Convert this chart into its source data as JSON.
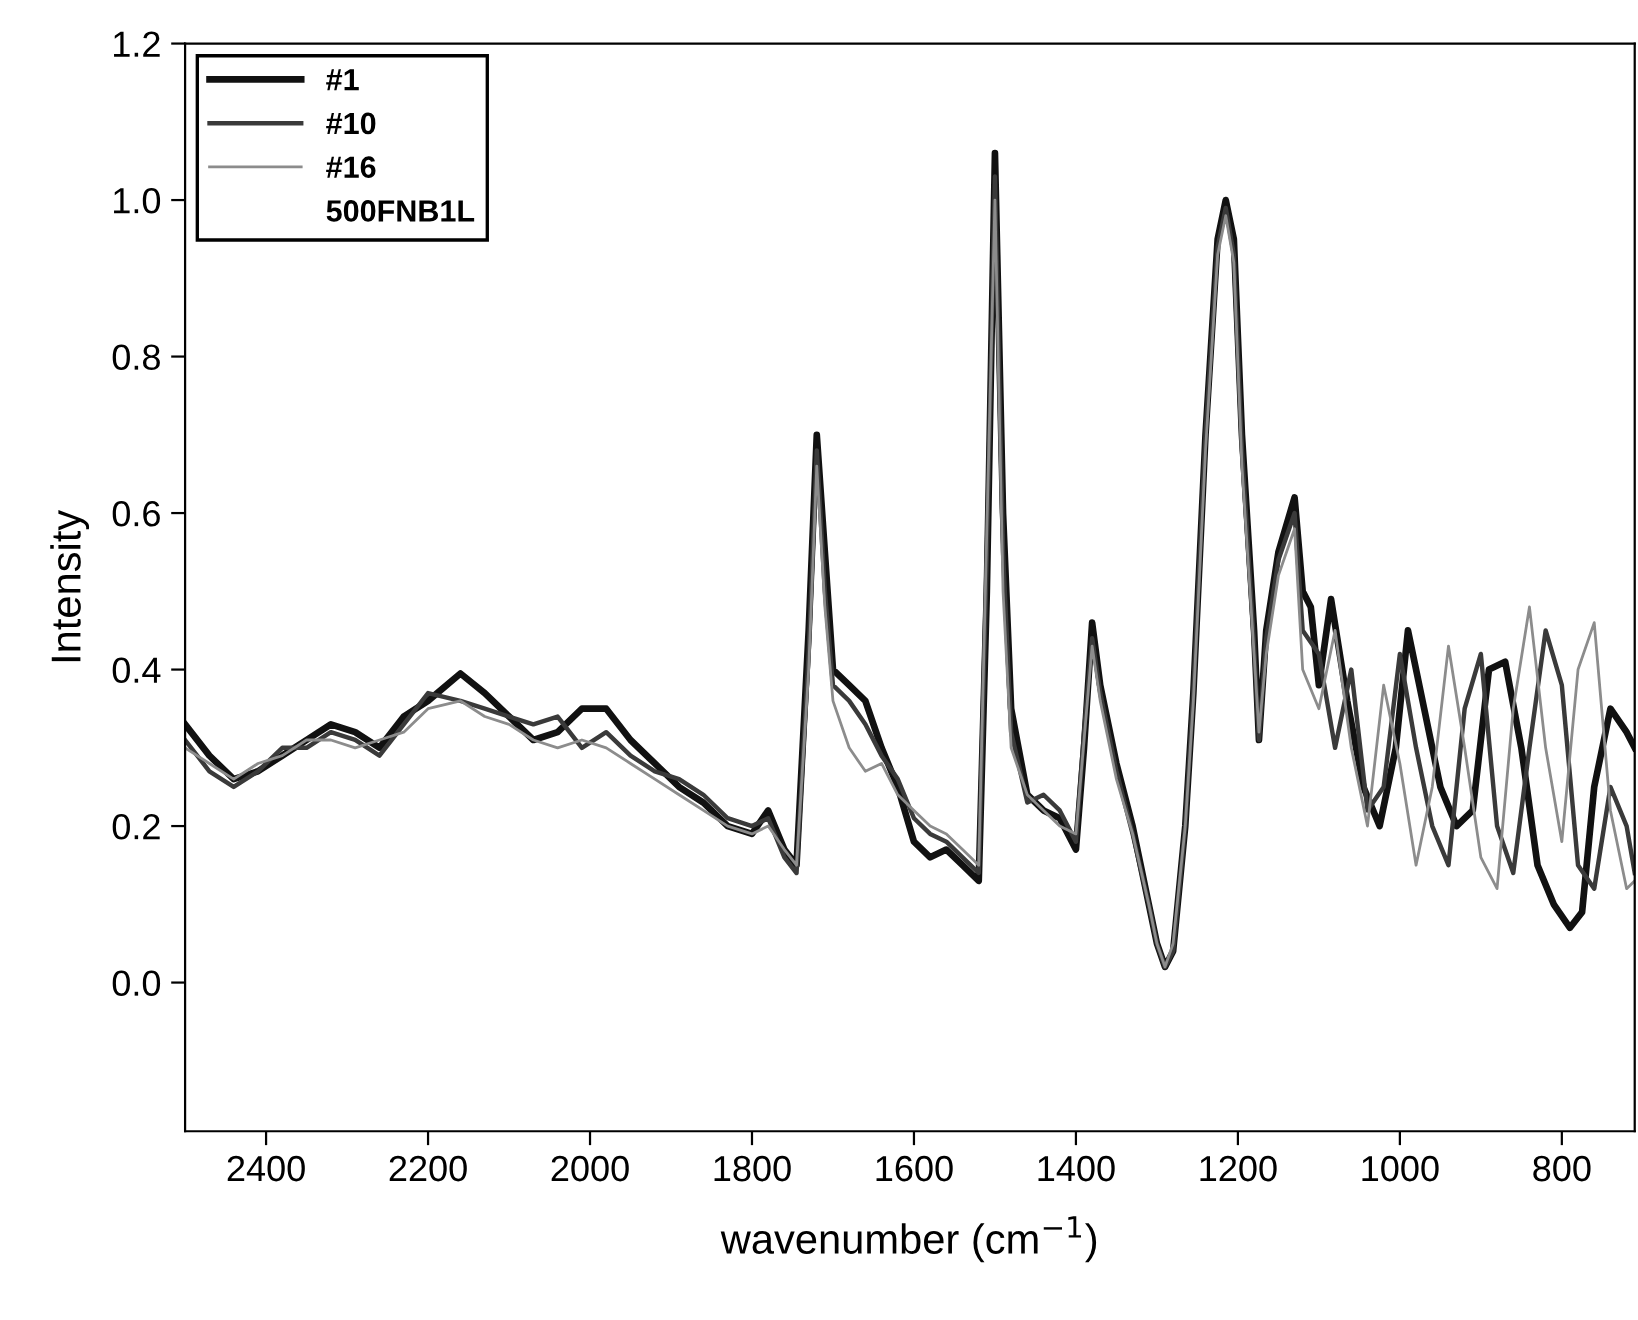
{
  "chart_data": {
    "type": "line",
    "xlabel": "wavenumber (cm$^{−1}$)",
    "ylabel": "Intensity",
    "legend": "top left",
    "grid": false,
    "line_style": "solid",
    "marker": "none",
    "annotations": [
      "500FNB1L"
    ],
    "xlim": [
      2500,
      710
    ],
    "xticks": [
      2400,
      2200,
      2000,
      1800,
      1600,
      1400,
      1200,
      1000,
      800
    ],
    "ylim": [
      -0.19,
      1.2
    ],
    "yticks": [
      {
        "value": 0,
        "label": "0.0"
      },
      {
        "value": 0.2,
        "label": "0.2"
      },
      {
        "value": 0.4,
        "label": "0.4"
      },
      {
        "value": 0.6,
        "label": "0.6"
      },
      {
        "value": 0.8,
        "label": "0.8"
      },
      {
        "value": 1.0,
        "label": "1.0"
      },
      {
        "value": 1.2,
        "label": "1.2"
      }
    ],
    "series": [
      {
        "name": "#1",
        "color": "#111111",
        "x": [
          2500,
          2470,
          2440,
          2410,
          2380,
          2350,
          2320,
          2290,
          2260,
          2230,
          2200,
          2160,
          2130,
          2100,
          2070,
          2040,
          2010,
          1980,
          1950,
          1920,
          1890,
          1860,
          1830,
          1800,
          1780,
          1760,
          1745,
          1730,
          1720,
          1710,
          1700,
          1680,
          1660,
          1640,
          1620,
          1600,
          1580,
          1560,
          1540,
          1520,
          1510,
          1500,
          1490,
          1480,
          1460,
          1440,
          1420,
          1400,
          1390,
          1380,
          1370,
          1350,
          1330,
          1310,
          1300,
          1290,
          1280,
          1265,
          1255,
          1240,
          1225,
          1215,
          1205,
          1195,
          1180,
          1174,
          1165,
          1150,
          1130,
          1120,
          1110,
          1100,
          1085,
          1065,
          1045,
          1025,
          1005,
          990,
          970,
          950,
          930,
          910,
          890,
          870,
          850,
          830,
          810,
          790,
          775,
          760,
          740,
          720,
          710
        ],
        "values": [
          0.33,
          0.29,
          0.26,
          0.27,
          0.29,
          0.31,
          0.33,
          0.32,
          0.3,
          0.34,
          0.36,
          0.395,
          0.37,
          0.34,
          0.31,
          0.32,
          0.35,
          0.35,
          0.31,
          0.28,
          0.25,
          0.23,
          0.2,
          0.19,
          0.22,
          0.17,
          0.15,
          0.45,
          0.7,
          0.55,
          0.4,
          0.38,
          0.36,
          0.3,
          0.25,
          0.18,
          0.16,
          0.17,
          0.15,
          0.13,
          0.5,
          1.06,
          0.6,
          0.35,
          0.24,
          0.22,
          0.21,
          0.17,
          0.3,
          0.46,
          0.38,
          0.28,
          0.2,
          0.1,
          0.05,
          0.02,
          0.04,
          0.2,
          0.37,
          0.7,
          0.95,
          1.0,
          0.95,
          0.7,
          0.45,
          0.31,
          0.45,
          0.55,
          0.62,
          0.5,
          0.48,
          0.38,
          0.49,
          0.36,
          0.25,
          0.2,
          0.3,
          0.45,
          0.35,
          0.25,
          0.2,
          0.22,
          0.4,
          0.41,
          0.3,
          0.15,
          0.1,
          0.07,
          0.09,
          0.25,
          0.35,
          0.32,
          0.3
        ]
      },
      {
        "name": "#10",
        "color": "#3a3a3a",
        "x": [
          2500,
          2470,
          2440,
          2410,
          2380,
          2350,
          2320,
          2290,
          2260,
          2230,
          2200,
          2160,
          2130,
          2100,
          2070,
          2040,
          2010,
          1980,
          1950,
          1920,
          1890,
          1860,
          1830,
          1800,
          1780,
          1760,
          1745,
          1730,
          1720,
          1710,
          1700,
          1680,
          1660,
          1640,
          1620,
          1600,
          1580,
          1560,
          1540,
          1520,
          1510,
          1500,
          1490,
          1480,
          1460,
          1440,
          1420,
          1400,
          1390,
          1380,
          1370,
          1350,
          1330,
          1310,
          1300,
          1290,
          1280,
          1265,
          1255,
          1240,
          1225,
          1215,
          1205,
          1195,
          1180,
          1174,
          1165,
          1150,
          1130,
          1120,
          1100,
          1080,
          1060,
          1040,
          1020,
          1000,
          980,
          960,
          940,
          920,
          900,
          880,
          860,
          840,
          820,
          800,
          780,
          760,
          740,
          720,
          710
        ],
        "values": [
          0.31,
          0.27,
          0.25,
          0.27,
          0.3,
          0.3,
          0.32,
          0.31,
          0.29,
          0.33,
          0.37,
          0.36,
          0.35,
          0.34,
          0.33,
          0.34,
          0.3,
          0.32,
          0.29,
          0.27,
          0.26,
          0.24,
          0.21,
          0.2,
          0.21,
          0.16,
          0.14,
          0.42,
          0.68,
          0.5,
          0.38,
          0.36,
          0.33,
          0.29,
          0.26,
          0.21,
          0.19,
          0.18,
          0.16,
          0.14,
          0.55,
          1.03,
          0.55,
          0.32,
          0.23,
          0.24,
          0.22,
          0.18,
          0.32,
          0.44,
          0.37,
          0.27,
          0.19,
          0.1,
          0.05,
          0.02,
          0.04,
          0.2,
          0.37,
          0.7,
          0.94,
          0.99,
          0.93,
          0.68,
          0.43,
          0.31,
          0.44,
          0.54,
          0.6,
          0.45,
          0.42,
          0.3,
          0.4,
          0.22,
          0.25,
          0.42,
          0.3,
          0.2,
          0.15,
          0.35,
          0.42,
          0.2,
          0.14,
          0.3,
          0.45,
          0.38,
          0.15,
          0.12,
          0.25,
          0.2,
          0.14
        ]
      },
      {
        "name": "#16",
        "color": "#8c8c8c",
        "x": [
          2500,
          2470,
          2440,
          2410,
          2380,
          2350,
          2320,
          2290,
          2260,
          2230,
          2200,
          2160,
          2130,
          2100,
          2070,
          2040,
          2010,
          1980,
          1950,
          1920,
          1890,
          1860,
          1830,
          1800,
          1780,
          1760,
          1745,
          1730,
          1720,
          1710,
          1700,
          1680,
          1660,
          1640,
          1620,
          1600,
          1580,
          1560,
          1540,
          1520,
          1510,
          1500,
          1490,
          1480,
          1460,
          1440,
          1420,
          1400,
          1390,
          1380,
          1370,
          1350,
          1330,
          1310,
          1300,
          1290,
          1280,
          1265,
          1255,
          1240,
          1225,
          1215,
          1205,
          1195,
          1180,
          1174,
          1165,
          1150,
          1130,
          1120,
          1100,
          1080,
          1060,
          1040,
          1020,
          1000,
          980,
          960,
          940,
          920,
          900,
          880,
          860,
          840,
          820,
          800,
          780,
          760,
          740,
          720,
          710
        ],
        "values": [
          0.3,
          0.28,
          0.26,
          0.28,
          0.29,
          0.31,
          0.31,
          0.3,
          0.31,
          0.32,
          0.35,
          0.36,
          0.34,
          0.33,
          0.31,
          0.3,
          0.31,
          0.3,
          0.28,
          0.26,
          0.24,
          0.22,
          0.2,
          0.19,
          0.2,
          0.17,
          0.15,
          0.4,
          0.66,
          0.48,
          0.36,
          0.3,
          0.27,
          0.28,
          0.24,
          0.22,
          0.2,
          0.19,
          0.17,
          0.15,
          0.58,
          1.0,
          0.5,
          0.3,
          0.24,
          0.22,
          0.2,
          0.19,
          0.31,
          0.43,
          0.36,
          0.26,
          0.19,
          0.1,
          0.05,
          0.02,
          0.05,
          0.2,
          0.36,
          0.68,
          0.93,
          0.98,
          0.92,
          0.66,
          0.42,
          0.32,
          0.42,
          0.52,
          0.58,
          0.4,
          0.35,
          0.45,
          0.3,
          0.2,
          0.38,
          0.28,
          0.15,
          0.25,
          0.43,
          0.3,
          0.16,
          0.12,
          0.35,
          0.48,
          0.3,
          0.18,
          0.4,
          0.46,
          0.22,
          0.12,
          0.13
        ]
      }
    ]
  }
}
